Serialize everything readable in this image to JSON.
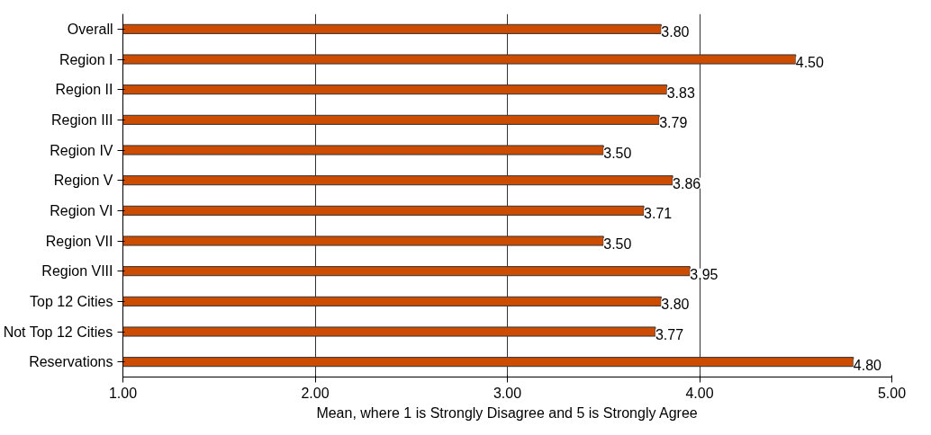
{
  "chart_data": {
    "type": "bar",
    "orientation": "horizontal",
    "xlabel": "Mean, where 1 is Strongly Disagree and 5 is Strongly Agree",
    "categories": [
      "Overall",
      "Region I",
      "Region II",
      "Region III",
      "Region IV",
      "Region V",
      "Region VI",
      "Region VII",
      "Region VIII",
      "Top 12 Cities",
      "Not Top 12 Cities",
      "Reservations"
    ],
    "values": [
      3.8,
      4.5,
      3.83,
      3.79,
      3.5,
      3.86,
      3.71,
      3.5,
      3.95,
      3.8,
      3.77,
      4.8
    ],
    "value_labels": [
      "3.80",
      "4.50",
      "3.83",
      "3.79",
      "3.50",
      "3.86",
      "3.71",
      "3.50",
      "3.95",
      "3.80",
      "3.77",
      "4.80"
    ],
    "color": "#cc4c02",
    "xlim": [
      1,
      5
    ],
    "xticks": [
      {
        "value": 1,
        "label": "1.00"
      },
      {
        "value": 2,
        "label": "2.00"
      },
      {
        "value": 3,
        "label": "3.00"
      },
      {
        "value": 4,
        "label": "4.00"
      },
      {
        "value": 5,
        "label": "5.00"
      }
    ],
    "grid": "x"
  }
}
